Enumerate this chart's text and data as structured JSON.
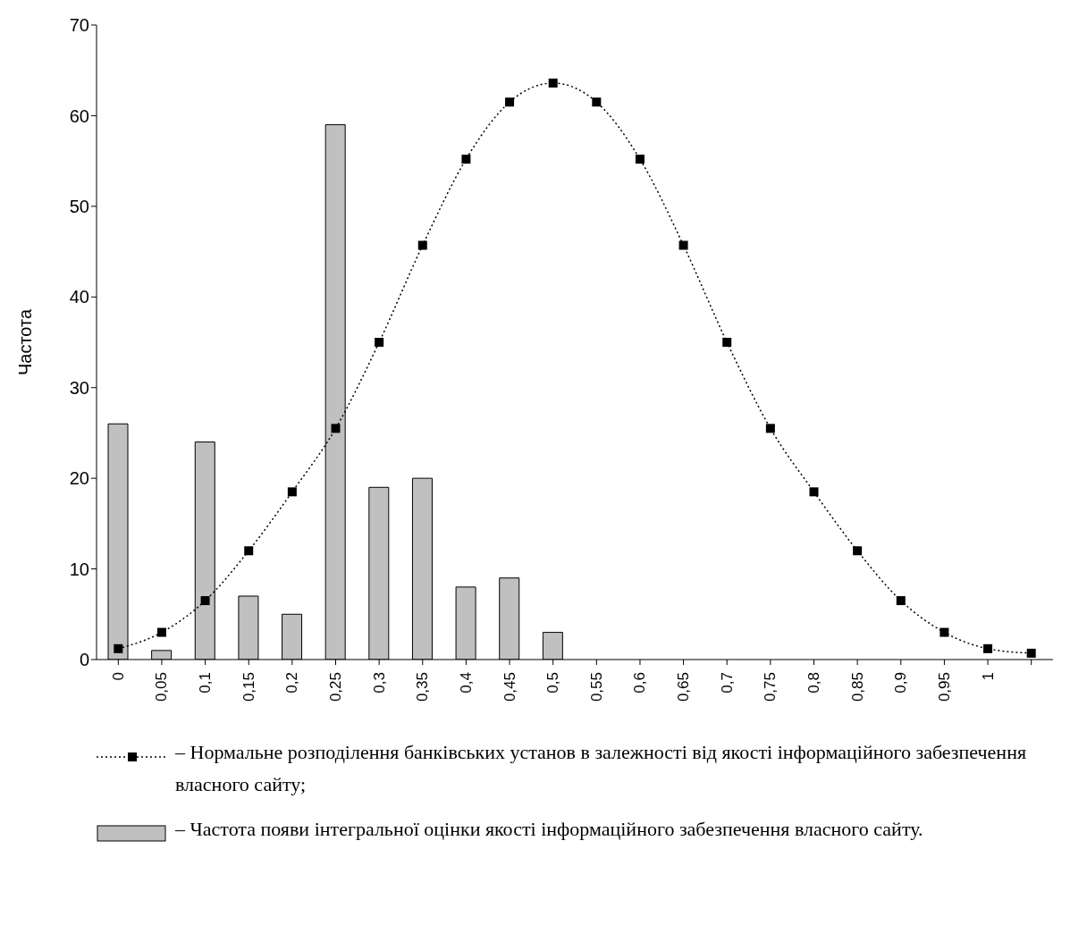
{
  "chart_data": {
    "type": "bar",
    "ylabel": "Частота",
    "categories": [
      "0",
      "0,05",
      "0,1",
      "0,15",
      "0,2",
      "0,25",
      "0,3",
      "0,35",
      "0,4",
      "0,45",
      "0,5",
      "0,55",
      "0,6",
      "0,65",
      "0,7",
      "0,75",
      "0,8",
      "0,85",
      "0,9",
      "0,95",
      "1",
      null
    ],
    "series": [
      {
        "name": "– Частота появи інтегральної оцінки якості інформаційного забезпечення власного сайту.",
        "color": "#c0c0c0",
        "values": [
          26,
          1,
          24,
          7,
          5,
          59,
          19,
          20,
          8,
          9,
          3,
          null,
          null,
          null,
          null,
          null,
          null,
          null,
          null,
          null,
          null,
          null
        ]
      },
      {
        "name": "– Нормальне розподілення банківських установ в залежності від якості інформаційного забезпечення власного сайту;",
        "type": "line",
        "color": "#000000",
        "marker": "square",
        "line_style": "dotted",
        "values": [
          1.2,
          3,
          6.5,
          12,
          18.5,
          25.5,
          35,
          45.7,
          55.2,
          61.5,
          63.6,
          61.5,
          55.2,
          45.7,
          35,
          25.5,
          18.5,
          12,
          6.5,
          3,
          1.2,
          0.7
        ]
      }
    ],
    "ylim": [
      0,
      70
    ],
    "yticks": [
      0,
      10,
      20,
      30,
      40,
      50,
      60,
      70
    ],
    "grid": false,
    "legend": "bottom"
  }
}
